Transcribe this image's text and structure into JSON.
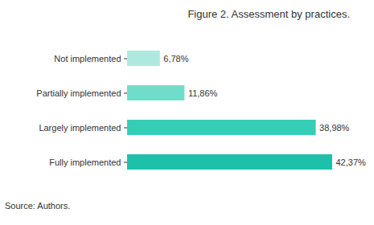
{
  "chart_data": {
    "type": "bar",
    "orientation": "horizontal",
    "title": "Figure 2. Assessment by practices.",
    "caption": "Source: Authors.",
    "categories": [
      "Not implemented",
      "Partially implemented",
      "Largely implemented",
      "Fully implemented"
    ],
    "values": [
      6.78,
      11.86,
      38.98,
      42.37
    ],
    "value_labels": [
      "6,78%",
      "11,86%",
      "38,98%",
      "42,37%"
    ],
    "colors": [
      "#aee9df",
      "#72dccb",
      "#35cdb8",
      "#1dc1aa"
    ],
    "data_labels": true,
    "tick_labels": "y",
    "grid": false
  }
}
